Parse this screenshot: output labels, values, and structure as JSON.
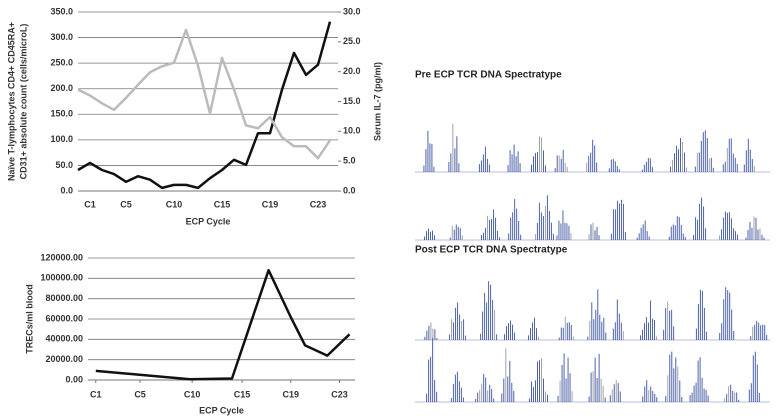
{
  "chart_data": [
    {
      "type": "line",
      "categories": [
        null,
        "C1",
        null,
        null,
        "C5",
        null,
        null,
        null,
        "C10",
        null,
        null,
        null,
        "C15",
        null,
        null,
        null,
        "C19",
        null,
        null,
        null,
        "C23",
        null
      ],
      "series": [
        {
          "color": "#111111",
          "values": [
            41,
            55,
            41,
            33,
            18,
            29,
            22,
            6,
            12,
            12,
            6,
            25,
            41,
            61,
            51,
            113,
            113,
            198,
            270,
            227,
            247,
            331
          ]
        },
        {
          "color": "#bbbbbb",
          "axis": "y2",
          "values": [
            17,
            16,
            14.7,
            13.6,
            15.6,
            17.8,
            19.9,
            20.9,
            21.5,
            27,
            21,
            13,
            22.3,
            17,
            11,
            10.5,
            12.4,
            9,
            7.5,
            7.5,
            5.5,
            8.5
          ]
        }
      ],
      "xlabel": "ECP Cycle",
      "ylabel": [
        "Naïve T-lymphocytes CD4+ CD45RA+",
        "CD31+ absolute count (cells/microL)"
      ],
      "y2label": "Serum IL-7 (pg/ml)",
      "ylim": [
        0,
        350
      ],
      "yticks": [
        {
          "value": 0,
          "label": "0.0"
        },
        {
          "value": 50,
          "label": "50.0"
        },
        {
          "value": 100,
          "label": "100.0"
        },
        {
          "value": 150,
          "label": "150.0"
        },
        {
          "value": 200,
          "label": "200.0"
        },
        {
          "value": 250,
          "label": "250.0"
        },
        {
          "value": 300,
          "label": "300.0"
        },
        {
          "value": 350,
          "label": "350.0"
        }
      ],
      "y2lim": [
        0,
        30
      ],
      "y2ticks": [
        {
          "value": 0,
          "label": "0.0"
        },
        {
          "value": 5,
          "label": "5.0"
        },
        {
          "value": 10,
          "label": "10.0"
        },
        {
          "value": 15,
          "label": "15.0"
        },
        {
          "value": 20,
          "label": "20.0"
        },
        {
          "value": 25,
          "label": "25.0"
        },
        {
          "value": 30,
          "label": "30.0"
        }
      ],
      "grid": true
    },
    {
      "type": "line",
      "x": [
        1,
        9.5,
        13.3,
        16.6,
        18.6,
        19.9,
        21.9,
        23.9
      ],
      "series": [
        {
          "color": "#111111",
          "values": [
            9000,
            800,
            1500,
            108000,
            62000,
            34000,
            24000,
            45000
          ]
        }
      ],
      "xlabel": "ECP Cycle",
      "ylabel": [
        "TRECs/ml blood"
      ],
      "xlim": [
        0.3,
        24.4
      ],
      "xticks": [
        {
          "value": 1,
          "label": "C1"
        },
        {
          "value": 5,
          "label": "C5"
        },
        {
          "value": 9.7,
          "label": "C10"
        },
        {
          "value": 14.2,
          "label": "C15"
        },
        {
          "value": 18.6,
          "label": "C19"
        },
        {
          "value": 23,
          "label": "C23"
        }
      ],
      "ylim": [
        0,
        120000
      ],
      "yticks": [
        {
          "value": 0,
          "label": "0.00"
        },
        {
          "value": 20000,
          "label": "20000.00"
        },
        {
          "value": 40000,
          "label": "40000.00"
        },
        {
          "value": 60000,
          "label": "60000.00"
        },
        {
          "value": 80000,
          "label": "80000.00"
        },
        {
          "value": 100000,
          "label": "100000.00"
        },
        {
          "value": 120000,
          "label": "120000.00"
        }
      ],
      "grid": true
    }
  ],
  "spectratypes": {
    "pre_title": "Pre ECP TCR DNA Spectratype",
    "post_title": "Post ECP TCR DNA Spectratype"
  }
}
